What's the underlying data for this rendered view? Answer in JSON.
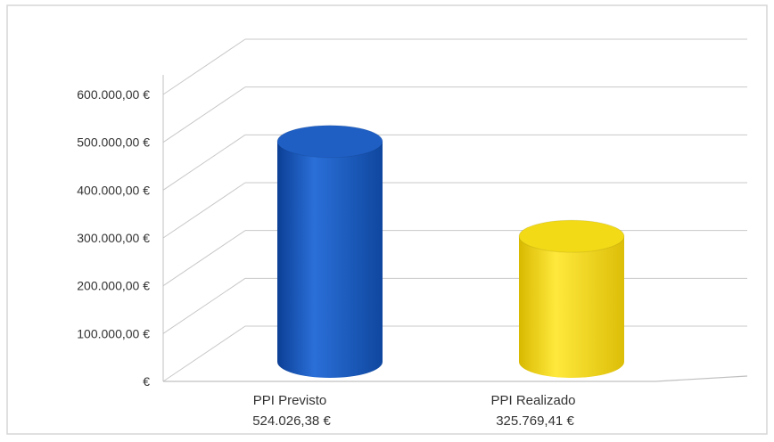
{
  "chart_data": {
    "type": "bar",
    "bar_shape": "cylinder",
    "title": "",
    "xlabel": "",
    "ylabel": "",
    "categories": [
      "PPI Previsto",
      "PPI Realizado"
    ],
    "values": [
      524026.38,
      325769.41
    ],
    "value_labels": [
      "524.026,38 €",
      "325.769,41 €"
    ],
    "bar_colors": [
      "#1f5fc4",
      "#f2da17"
    ],
    "ylim": [
      0,
      600000
    ],
    "yticks": [
      0,
      100000,
      200000,
      300000,
      400000,
      500000,
      600000
    ],
    "ytick_labels": [
      "€",
      "100.000,00 €",
      "200.000,00 €",
      "300.000,00 €",
      "400.000,00 €",
      "500.000,00 €",
      "600.000,00 €"
    ],
    "grid": true,
    "legend": "none"
  }
}
